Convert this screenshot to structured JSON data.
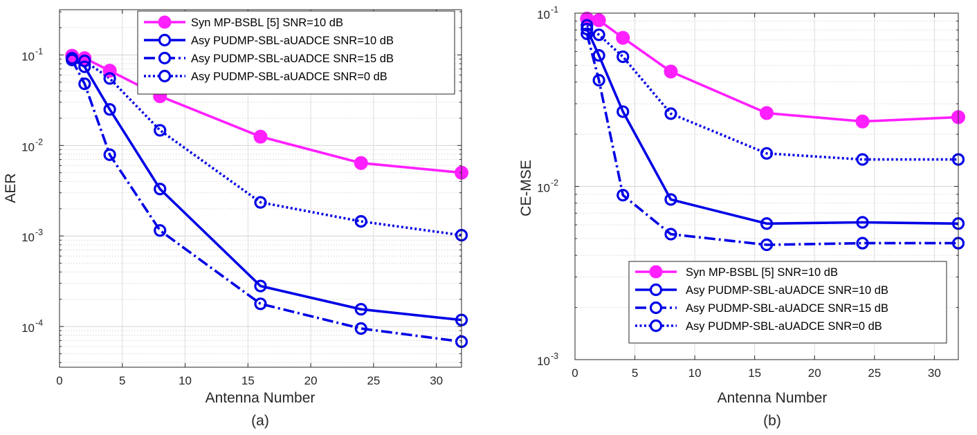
{
  "chart_data": [
    {
      "type": "line",
      "caption": "(a)",
      "xlabel": "Antenna Number",
      "ylabel": "AER",
      "yscale": "log",
      "xlim": [
        0,
        32
      ],
      "ylim_exp": [
        -4.45,
        -0.5
      ],
      "xticks": [
        0,
        5,
        10,
        15,
        20,
        25,
        30
      ],
      "ytick_exps": [
        -4,
        -3,
        -2,
        -1
      ],
      "ytick_labels": [
        {
          "base": "10",
          "exp": "-4"
        },
        {
          "base": "10",
          "exp": "-3"
        },
        {
          "base": "10",
          "exp": "-2"
        },
        {
          "base": "10",
          "exp": "-1"
        }
      ],
      "grid": true,
      "legend_position": "top-right",
      "x": [
        1,
        2,
        4,
        8,
        16,
        24,
        32
      ],
      "series": [
        {
          "name": "Syn MP-BSBL [5] SNR=10 dB",
          "color": "#ff1fff",
          "style": "solid",
          "marker": "filled-circle",
          "values": [
            0.098,
            0.092,
            0.067,
            0.035,
            0.0125,
            0.0064,
            0.005
          ]
        },
        {
          "name": "Asy PUDMP-SBL-aUADCE SNR=10 dB",
          "color": "#0000e6",
          "style": "solid",
          "marker": "open-circle",
          "values": [
            0.09,
            0.074,
            0.025,
            0.0033,
            0.00028,
            0.000155,
            0.000118
          ]
        },
        {
          "name": "Asy PUDMP-SBL-aUADCE SNR=15 dB",
          "color": "#0000e6",
          "style": "dashdot",
          "marker": "open-circle",
          "values": [
            0.088,
            0.048,
            0.0079,
            0.00115,
            0.000178,
            9.5e-05,
            6.8e-05
          ]
        },
        {
          "name": "Asy PUDMP-SBL-aUADCE SNR=0 dB",
          "color": "#0000e6",
          "style": "dotted",
          "marker": "open-circle",
          "values": [
            0.092,
            0.086,
            0.055,
            0.0147,
            0.00235,
            0.00145,
            0.00102
          ]
        }
      ]
    },
    {
      "type": "line",
      "caption": "(b)",
      "xlabel": "Antenna Number",
      "ylabel": "CE-MSE",
      "yscale": "log",
      "xlim": [
        0,
        32
      ],
      "ylim_exp": [
        -3,
        -1
      ],
      "xticks": [
        0,
        5,
        10,
        15,
        20,
        25,
        30
      ],
      "ytick_exps": [
        -3,
        -2,
        -1
      ],
      "ytick_labels": [
        {
          "base": "10",
          "exp": "-3"
        },
        {
          "base": "10",
          "exp": "-2"
        },
        {
          "base": "10",
          "exp": "-1"
        }
      ],
      "grid": true,
      "legend_position": "bottom-right",
      "x": [
        1,
        2,
        4,
        8,
        16,
        24,
        32
      ],
      "series": [
        {
          "name": "Syn MP-BSBL [5] SNR=10 dB",
          "color": "#ff1fff",
          "style": "solid",
          "marker": "filled-circle",
          "values": [
            0.093,
            0.091,
            0.072,
            0.046,
            0.0265,
            0.0237,
            0.0251
          ]
        },
        {
          "name": "Asy PUDMP-SBL-aUADCE SNR=10 dB",
          "color": "#0000e6",
          "style": "solid",
          "marker": "open-circle",
          "values": [
            0.081,
            0.057,
            0.027,
            0.0084,
            0.0061,
            0.0062,
            0.0061
          ]
        },
        {
          "name": "Asy PUDMP-SBL-aUADCE SNR=15 dB",
          "color": "#0000e6",
          "style": "dashdot",
          "marker": "open-circle",
          "values": [
            0.076,
            0.041,
            0.0089,
            0.0053,
            0.0046,
            0.0047,
            0.0047
          ]
        },
        {
          "name": "Asy PUDMP-SBL-aUADCE SNR=0 dB",
          "color": "#0000e6",
          "style": "dotted",
          "marker": "open-circle",
          "values": [
            0.085,
            0.075,
            0.056,
            0.0263,
            0.0155,
            0.0143,
            0.0143
          ]
        }
      ]
    }
  ]
}
